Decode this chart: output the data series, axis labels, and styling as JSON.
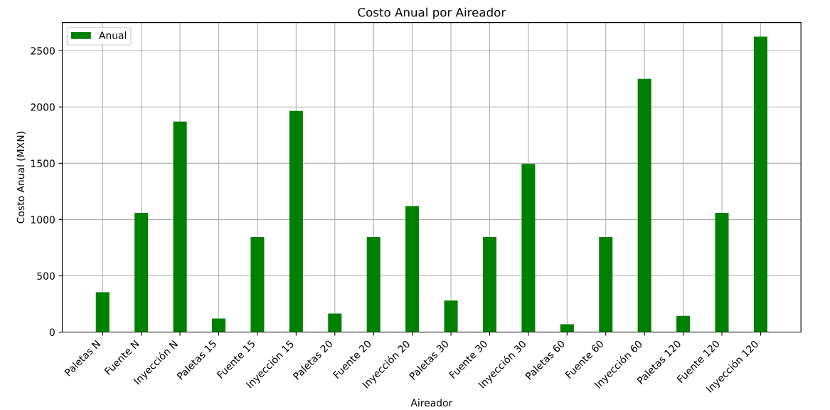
{
  "chart_data": {
    "type": "bar",
    "title": "Costo Anual por Aireador",
    "xlabel": "Aireador",
    "ylabel": "Costo Anual (MXN)",
    "categories": [
      "Paletas N",
      "Fuente N",
      "Inyección N",
      "Paletas 15",
      "Fuente 15",
      "Inyección 15",
      "Paletas 20",
      "Fuente 20",
      "Inyección 20",
      "Paletas 30",
      "Fuente 30",
      "Inyección 30",
      "Paletas 60",
      "Fuente 60",
      "Inyección 60",
      "Paletas 120",
      "Fuente 120",
      "Inyección 120"
    ],
    "series": [
      {
        "name": "Anual",
        "color": "#008000",
        "values": [
          355,
          1060,
          1870,
          120,
          845,
          1965,
          165,
          845,
          1120,
          280,
          845,
          1495,
          70,
          845,
          2250,
          145,
          1060,
          2625
        ]
      }
    ],
    "ylim": [
      0,
      2750
    ],
    "yticks": [
      0,
      500,
      1000,
      1500,
      2000,
      2500
    ],
    "grid": true,
    "legend": "top left"
  }
}
